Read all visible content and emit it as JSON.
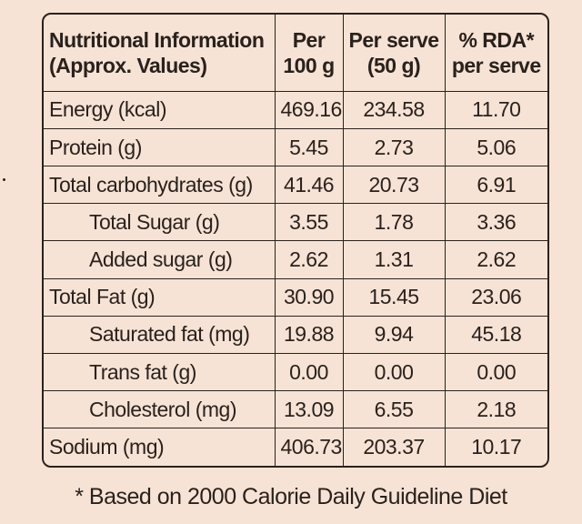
{
  "headers": {
    "col1_line1": "Nutritional Information",
    "col1_line2": "(Approx. Values)",
    "col2_line1": "Per",
    "col2_line2": "100 g",
    "col3_line1": "Per serve",
    "col3_line2": "(50 g)",
    "col4_line1": "% RDA*",
    "col4_line2": "per serve"
  },
  "rows": [
    {
      "name": "Energy (kcal)",
      "per100": "469.16",
      "perServe": "234.58",
      "rda": "11.70"
    },
    {
      "name": "Protein (g)",
      "per100": "5.45",
      "perServe": "2.73",
      "rda": "5.06"
    },
    {
      "name": "Total carbohydrates (g)",
      "per100": "41.46",
      "perServe": "20.73",
      "rda": "6.91"
    },
    {
      "name": "Total Sugar (g)",
      "per100": "3.55",
      "perServe": "1.78",
      "rda": "3.36"
    },
    {
      "name": "Added sugar (g)",
      "per100": "2.62",
      "perServe": "1.31",
      "rda": "2.62"
    },
    {
      "name": "Total Fat (g)",
      "per100": "30.90",
      "perServe": "15.45",
      "rda": "23.06"
    },
    {
      "name": "Saturated fat (mg)",
      "per100": "19.88",
      "perServe": "9.94",
      "rda": "45.18"
    },
    {
      "name": "Trans fat (g)",
      "per100": "0.00",
      "perServe": "0.00",
      "rda": "0.00"
    },
    {
      "name": "Cholesterol (mg)",
      "per100": "13.09",
      "perServe": "6.55",
      "rda": "2.18"
    },
    {
      "name": "Sodium (mg)",
      "per100": "406.73",
      "perServe": "203.37",
      "rda": "10.17"
    }
  ],
  "footnote": "* Based on 2000 Calorie Daily Guideline Diet"
}
